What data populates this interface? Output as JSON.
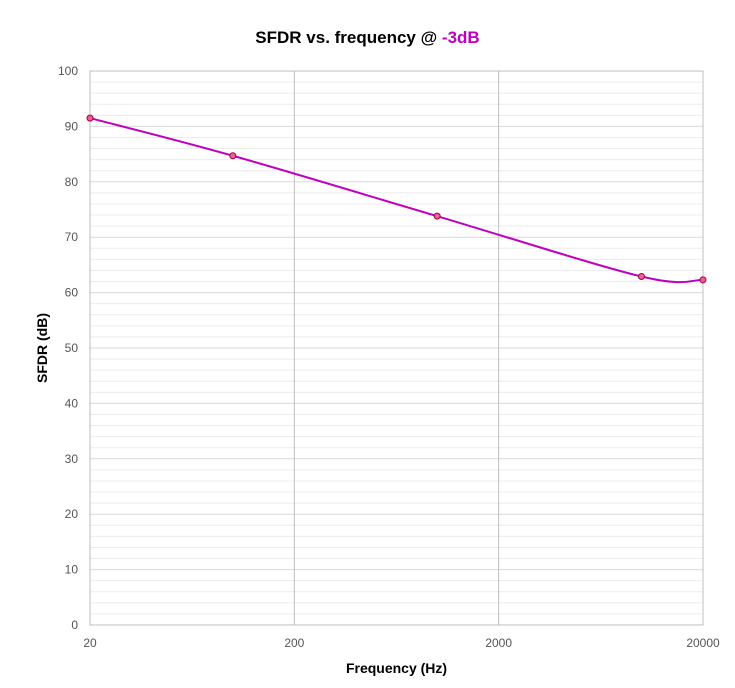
{
  "chart_data": {
    "type": "line",
    "title": "SFDR vs. frequency @",
    "title_highlight": "-3dB",
    "title_highlight_color": "#c000c0",
    "xlabel": "Frequency (Hz)",
    "ylabel": "SFDR (dB)",
    "x_scale": "log",
    "xlim": [
      20,
      20000
    ],
    "ylim": [
      0,
      100
    ],
    "x_ticks": [
      "20",
      "200",
      "2000",
      "20000"
    ],
    "x_tick_values": [
      20,
      200,
      2000,
      20000
    ],
    "y_ticks": [
      "0",
      "10",
      "20",
      "30",
      "40",
      "50",
      "60",
      "70",
      "80",
      "90",
      "100"
    ],
    "y_tick_values": [
      0,
      10,
      20,
      30,
      40,
      50,
      60,
      70,
      80,
      90,
      100
    ],
    "grid": true,
    "series": [
      {
        "color": "#c000c0",
        "marker_color": "#f06090",
        "x": [
          20,
          100,
          1000,
          10000,
          20000
        ],
        "y": [
          91.5,
          84.7,
          73.8,
          62.9,
          62.3
        ]
      }
    ]
  }
}
